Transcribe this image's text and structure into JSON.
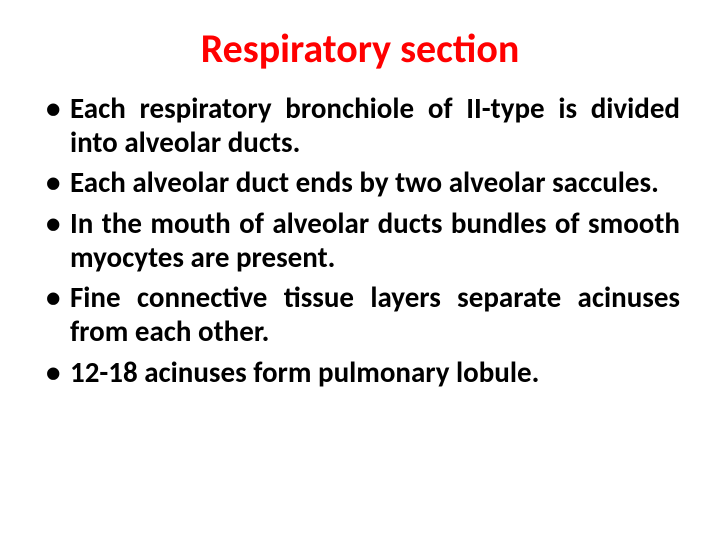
{
  "slide": {
    "title": "Respiratory section",
    "title_color": "#ff0000",
    "title_fontsize": 40,
    "body_color": "#000000",
    "body_fontsize": 29,
    "line_height": 1.18,
    "background_color": "#ffffff",
    "bullets": [
      "Each respiratory bronchiole of II-type is divided into alveolar ducts.",
      "Each alveolar duct ends by two alveolar saccules.",
      "In the mouth of alveolar ducts bundles of smooth myocytes are present.",
      "Fine connective tissue layers separate acinuses from each other.",
      "12-18 acinuses form pulmonary lobule."
    ]
  }
}
